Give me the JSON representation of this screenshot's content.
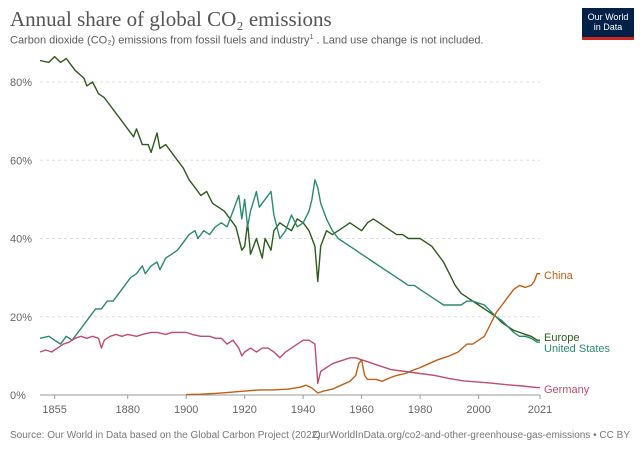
{
  "title": "Annual share of global CO₂ emissions",
  "subtitle": "Carbon dioxide (CO₂) emissions from fossil fuels and industry",
  "subtitle_note": "1",
  "subtitle_rest": ". Land use change is not included.",
  "logo": {
    "line1": "Our World",
    "line2": "in Data"
  },
  "footer": {
    "source": "Source: Our World in Data based on the Global Carbon Project (2022)",
    "url": "OurWorldInData.org/co2-and-other-greenhouse-gas-emissions • CC BY"
  },
  "chart_data": {
    "type": "line",
    "xlim": [
      1850,
      2021
    ],
    "ylim": [
      0,
      85
    ],
    "x_ticks": [
      1855,
      1880,
      1900,
      1920,
      1940,
      1960,
      1980,
      2000,
      2021
    ],
    "y_ticks": [
      0,
      20,
      40,
      60,
      80
    ],
    "y_tick_labels": [
      "0%",
      "20%",
      "40%",
      "60%",
      "80%"
    ],
    "grid": "horizontal dashed",
    "series": [
      {
        "name": "Europe",
        "color": "#2c5b1b",
        "points": [
          [
            1850,
            85.5
          ],
          [
            1853,
            85
          ],
          [
            1855,
            86.5
          ],
          [
            1857,
            85
          ],
          [
            1859,
            86
          ],
          [
            1860,
            85
          ],
          [
            1862,
            83
          ],
          [
            1865,
            81
          ],
          [
            1866,
            79
          ],
          [
            1868,
            80
          ],
          [
            1870,
            77
          ],
          [
            1872,
            76
          ],
          [
            1874,
            74
          ],
          [
            1876,
            72
          ],
          [
            1878,
            70
          ],
          [
            1880,
            68
          ],
          [
            1882,
            66
          ],
          [
            1883,
            68
          ],
          [
            1885,
            64
          ],
          [
            1887,
            64
          ],
          [
            1888,
            62
          ],
          [
            1890,
            67
          ],
          [
            1891,
            63
          ],
          [
            1893,
            64
          ],
          [
            1895,
            62
          ],
          [
            1897,
            60
          ],
          [
            1899,
            58
          ],
          [
            1901,
            55
          ],
          [
            1903,
            53
          ],
          [
            1905,
            51
          ],
          [
            1907,
            52
          ],
          [
            1909,
            49
          ],
          [
            1911,
            48
          ],
          [
            1913,
            47
          ],
          [
            1915,
            45
          ],
          [
            1917,
            43
          ],
          [
            1919,
            37
          ],
          [
            1920,
            38
          ],
          [
            1921,
            44
          ],
          [
            1922,
            36
          ],
          [
            1924,
            40
          ],
          [
            1926,
            35
          ],
          [
            1927,
            40
          ],
          [
            1929,
            37
          ],
          [
            1930,
            42
          ],
          [
            1932,
            44
          ],
          [
            1934,
            43
          ],
          [
            1936,
            42
          ],
          [
            1938,
            45
          ],
          [
            1940,
            44
          ],
          [
            1942,
            42
          ],
          [
            1944,
            38
          ],
          [
            1945,
            29
          ],
          [
            1946,
            38
          ],
          [
            1948,
            42
          ],
          [
            1950,
            41
          ],
          [
            1952,
            42
          ],
          [
            1954,
            43
          ],
          [
            1956,
            44
          ],
          [
            1958,
            43
          ],
          [
            1960,
            42
          ],
          [
            1962,
            44
          ],
          [
            1964,
            45
          ],
          [
            1966,
            44
          ],
          [
            1968,
            43
          ],
          [
            1970,
            42
          ],
          [
            1972,
            41
          ],
          [
            1974,
            41
          ],
          [
            1976,
            40
          ],
          [
            1978,
            40
          ],
          [
            1980,
            40
          ],
          [
            1982,
            39
          ],
          [
            1984,
            38
          ],
          [
            1986,
            36
          ],
          [
            1988,
            34
          ],
          [
            1990,
            31
          ],
          [
            1992,
            28
          ],
          [
            1994,
            26
          ],
          [
            1996,
            25
          ],
          [
            1998,
            24
          ],
          [
            2000,
            23
          ],
          [
            2002,
            22
          ],
          [
            2004,
            21
          ],
          [
            2006,
            20
          ],
          [
            2008,
            18.5
          ],
          [
            2010,
            17.5
          ],
          [
            2012,
            16.5
          ],
          [
            2014,
            16
          ],
          [
            2016,
            15.5
          ],
          [
            2018,
            15
          ],
          [
            2020,
            14
          ],
          [
            2021,
            14
          ]
        ]
      },
      {
        "name": "United States",
        "color": "#2a8a6e",
        "points": [
          [
            1850,
            14.5
          ],
          [
            1853,
            15
          ],
          [
            1855,
            14
          ],
          [
            1857,
            13
          ],
          [
            1859,
            15
          ],
          [
            1861,
            14
          ],
          [
            1863,
            16
          ],
          [
            1865,
            18
          ],
          [
            1867,
            20
          ],
          [
            1869,
            22
          ],
          [
            1871,
            22
          ],
          [
            1873,
            24
          ],
          [
            1875,
            24
          ],
          [
            1877,
            26
          ],
          [
            1879,
            28
          ],
          [
            1881,
            30
          ],
          [
            1883,
            31
          ],
          [
            1885,
            33
          ],
          [
            1886,
            31
          ],
          [
            1888,
            33
          ],
          [
            1890,
            34
          ],
          [
            1891,
            32
          ],
          [
            1893,
            35
          ],
          [
            1895,
            36
          ],
          [
            1897,
            37
          ],
          [
            1899,
            39
          ],
          [
            1901,
            41
          ],
          [
            1903,
            42
          ],
          [
            1904,
            40
          ],
          [
            1906,
            42
          ],
          [
            1908,
            41
          ],
          [
            1910,
            43
          ],
          [
            1912,
            44
          ],
          [
            1914,
            43
          ],
          [
            1916,
            47
          ],
          [
            1918,
            51
          ],
          [
            1919,
            45
          ],
          [
            1920,
            50
          ],
          [
            1921,
            43
          ],
          [
            1922,
            47
          ],
          [
            1924,
            52
          ],
          [
            1925,
            48
          ],
          [
            1927,
            50
          ],
          [
            1929,
            52
          ],
          [
            1930,
            46
          ],
          [
            1932,
            40
          ],
          [
            1934,
            42
          ],
          [
            1936,
            46
          ],
          [
            1938,
            43
          ],
          [
            1940,
            44
          ],
          [
            1942,
            47
          ],
          [
            1943,
            50
          ],
          [
            1944,
            55
          ],
          [
            1945,
            53
          ],
          [
            1946,
            49
          ],
          [
            1948,
            45
          ],
          [
            1950,
            42
          ],
          [
            1952,
            40
          ],
          [
            1954,
            39
          ],
          [
            1956,
            38
          ],
          [
            1958,
            37
          ],
          [
            1960,
            36
          ],
          [
            1962,
            35
          ],
          [
            1964,
            34
          ],
          [
            1966,
            33
          ],
          [
            1968,
            32
          ],
          [
            1970,
            31
          ],
          [
            1972,
            30
          ],
          [
            1974,
            29
          ],
          [
            1976,
            28
          ],
          [
            1978,
            28
          ],
          [
            1980,
            27
          ],
          [
            1982,
            26
          ],
          [
            1984,
            25
          ],
          [
            1986,
            24
          ],
          [
            1988,
            23
          ],
          [
            1990,
            23
          ],
          [
            1992,
            23
          ],
          [
            1994,
            23
          ],
          [
            1996,
            24
          ],
          [
            1998,
            24
          ],
          [
            2000,
            23.5
          ],
          [
            2002,
            23
          ],
          [
            2004,
            21.5
          ],
          [
            2006,
            20
          ],
          [
            2008,
            19
          ],
          [
            2010,
            17.5
          ],
          [
            2012,
            16
          ],
          [
            2014,
            15
          ],
          [
            2016,
            15
          ],
          [
            2018,
            14.5
          ],
          [
            2020,
            13.5
          ],
          [
            2021,
            13.5
          ]
        ]
      },
      {
        "name": "China",
        "color": "#c15f13",
        "points": [
          [
            1900,
            0.1
          ],
          [
            1905,
            0.2
          ],
          [
            1910,
            0.4
          ],
          [
            1915,
            0.7
          ],
          [
            1920,
            1
          ],
          [
            1925,
            1.3
          ],
          [
            1930,
            1.3
          ],
          [
            1935,
            1.5
          ],
          [
            1939,
            2
          ],
          [
            1941,
            2.5
          ],
          [
            1943,
            1.8
          ],
          [
            1945,
            0.5
          ],
          [
            1947,
            1
          ],
          [
            1950,
            1.5
          ],
          [
            1953,
            2.5
          ],
          [
            1956,
            3.5
          ],
          [
            1958,
            5
          ],
          [
            1959,
            8
          ],
          [
            1960,
            9
          ],
          [
            1961,
            5
          ],
          [
            1962,
            4
          ],
          [
            1965,
            4
          ],
          [
            1967,
            3.5
          ],
          [
            1970,
            4.5
          ],
          [
            1972,
            5
          ],
          [
            1975,
            5.5
          ],
          [
            1978,
            6.5
          ],
          [
            1980,
            7
          ],
          [
            1983,
            8
          ],
          [
            1986,
            9
          ],
          [
            1990,
            10
          ],
          [
            1993,
            11
          ],
          [
            1996,
            13
          ],
          [
            1998,
            13
          ],
          [
            2000,
            14
          ],
          [
            2002,
            15
          ],
          [
            2004,
            18
          ],
          [
            2006,
            21
          ],
          [
            2008,
            23
          ],
          [
            2010,
            25
          ],
          [
            2012,
            27
          ],
          [
            2014,
            28
          ],
          [
            2016,
            27.5
          ],
          [
            2018,
            28
          ],
          [
            2019,
            29
          ],
          [
            2020,
            31
          ],
          [
            2021,
            31
          ]
        ]
      },
      {
        "name": "Germany",
        "color": "#be4e6d",
        "points": [
          [
            1850,
            11
          ],
          [
            1852,
            11.5
          ],
          [
            1854,
            11
          ],
          [
            1856,
            12
          ],
          [
            1858,
            13
          ],
          [
            1860,
            13.5
          ],
          [
            1862,
            14.5
          ],
          [
            1864,
            15
          ],
          [
            1866,
            14.5
          ],
          [
            1868,
            15
          ],
          [
            1870,
            14.5
          ],
          [
            1871,
            12
          ],
          [
            1872,
            14
          ],
          [
            1874,
            15
          ],
          [
            1876,
            15.5
          ],
          [
            1878,
            15
          ],
          [
            1880,
            15.5
          ],
          [
            1883,
            15
          ],
          [
            1885,
            15.5
          ],
          [
            1888,
            16
          ],
          [
            1890,
            16
          ],
          [
            1893,
            15.5
          ],
          [
            1895,
            16
          ],
          [
            1898,
            16
          ],
          [
            1900,
            16
          ],
          [
            1902,
            15.5
          ],
          [
            1905,
            15
          ],
          [
            1908,
            15
          ],
          [
            1910,
            14.5
          ],
          [
            1912,
            14.5
          ],
          [
            1914,
            13
          ],
          [
            1916,
            14
          ],
          [
            1918,
            12
          ],
          [
            1919,
            10
          ],
          [
            1920,
            11
          ],
          [
            1922,
            12
          ],
          [
            1924,
            11
          ],
          [
            1926,
            12
          ],
          [
            1928,
            12
          ],
          [
            1930,
            11
          ],
          [
            1932,
            9.5
          ],
          [
            1934,
            11
          ],
          [
            1936,
            12
          ],
          [
            1938,
            13
          ],
          [
            1940,
            14
          ],
          [
            1942,
            14
          ],
          [
            1944,
            13
          ],
          [
            1945,
            3
          ],
          [
            1946,
            6
          ],
          [
            1948,
            7
          ],
          [
            1950,
            8
          ],
          [
            1952,
            8.5
          ],
          [
            1954,
            9
          ],
          [
            1956,
            9.5
          ],
          [
            1958,
            9.5
          ],
          [
            1960,
            9
          ],
          [
            1962,
            8.5
          ],
          [
            1964,
            8
          ],
          [
            1966,
            7.5
          ],
          [
            1968,
            7
          ],
          [
            1970,
            6.5
          ],
          [
            1975,
            6
          ],
          [
            1980,
            5.5
          ],
          [
            1985,
            5
          ],
          [
            1990,
            4.2
          ],
          [
            1995,
            3.6
          ],
          [
            2000,
            3.3
          ],
          [
            2005,
            3
          ],
          [
            2010,
            2.6
          ],
          [
            2015,
            2.3
          ],
          [
            2020,
            1.9
          ],
          [
            2021,
            1.9
          ]
        ]
      }
    ]
  }
}
